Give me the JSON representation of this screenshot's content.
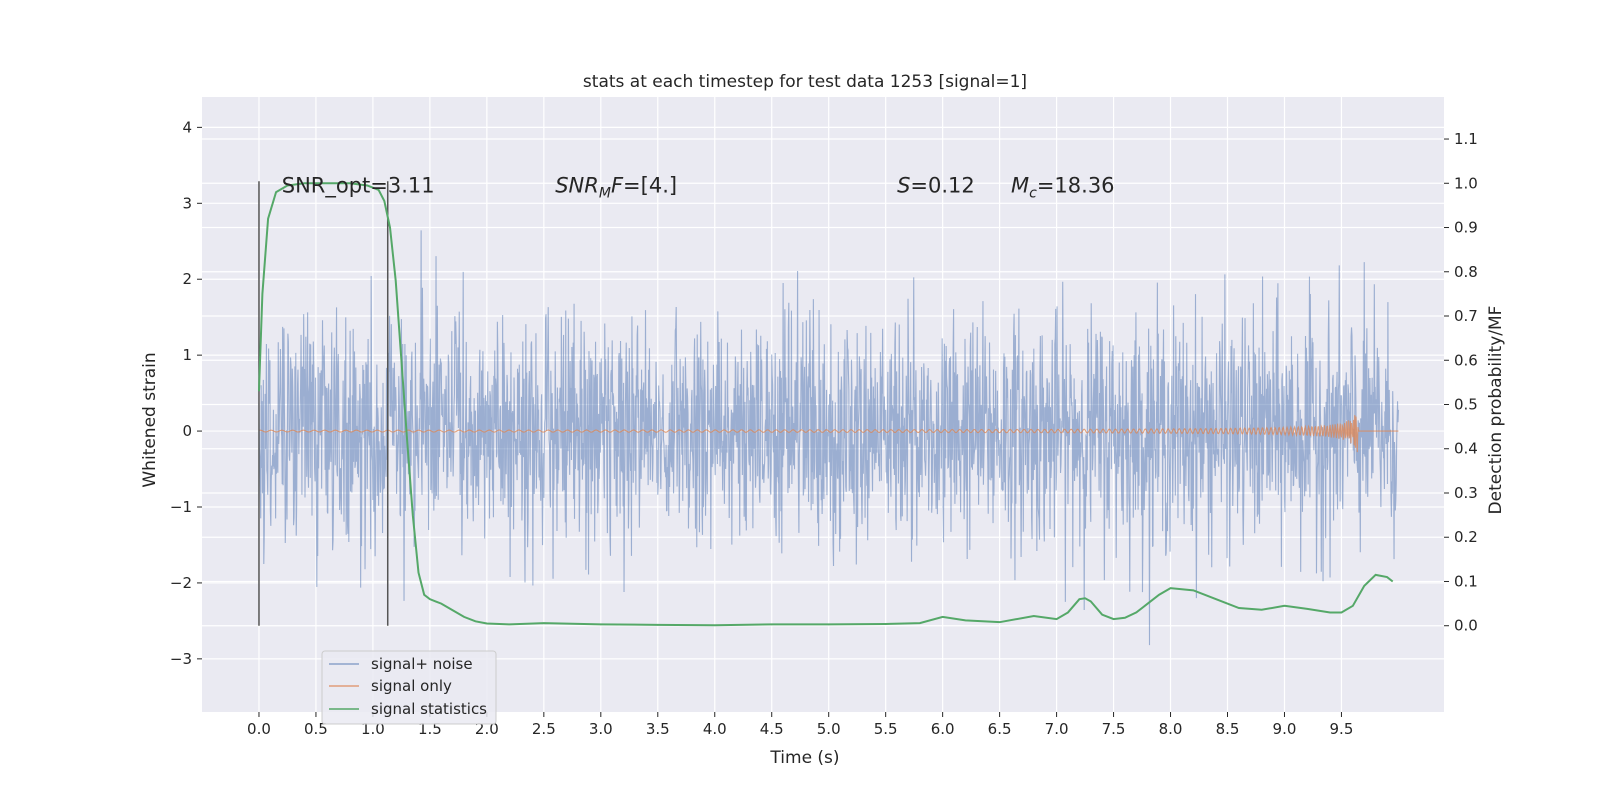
{
  "chart_data": {
    "type": "line",
    "title": "stats at each timestep for test data 1253 [signal=1]",
    "xlabel": "Time (s)",
    "ylabel": "Whitened strain",
    "y2label": "Detection probability/MF",
    "xlim": [
      -0.5,
      10.4
    ],
    "ylim": [
      -3.7,
      4.4
    ],
    "y2lim": [
      -0.195,
      1.195
    ],
    "x_ticks": [
      0.0,
      0.5,
      1.0,
      1.5,
      2.0,
      2.5,
      3.0,
      3.5,
      4.0,
      4.5,
      5.0,
      5.5,
      6.0,
      6.5,
      7.0,
      7.5,
      8.0,
      8.5,
      9.0,
      9.5
    ],
    "x_tick_labels": [
      "0.0",
      "0.5",
      "1.0",
      "1.5",
      "2.0",
      "2.5",
      "3.0",
      "3.5",
      "4.0",
      "4.5",
      "5.0",
      "5.5",
      "6.0",
      "6.5",
      "7.0",
      "7.5",
      "8.0",
      "8.5",
      "9.0",
      "9.5"
    ],
    "y_ticks": [
      -3,
      -2,
      -1,
      0,
      1,
      2,
      3,
      4
    ],
    "y_tick_labels": [
      "−3",
      "−2",
      "−1",
      "0",
      "1",
      "2",
      "3",
      "4"
    ],
    "y2_ticks": [
      0.0,
      0.1,
      0.2,
      0.3,
      0.4,
      0.5,
      0.6,
      0.7,
      0.8,
      0.9,
      1.0,
      1.1
    ],
    "y2_tick_labels": [
      "0.0",
      "0.1",
      "0.2",
      "0.3",
      "0.4",
      "0.5",
      "0.6",
      "0.7",
      "0.8",
      "0.9",
      "1.0",
      "1.1"
    ],
    "grid": true,
    "legend_position": "lower-left",
    "series": [
      {
        "name": "signal+ noise",
        "color": "#4c72b0",
        "axis": "left",
        "x_range": [
          0.0,
          10.0
        ]
      },
      {
        "name": "signal only",
        "color": "#dd8452",
        "axis": "left",
        "merger_time": 9.65,
        "peak_amplitude": 0.5
      },
      {
        "name": "signal statistics",
        "color": "#55a868",
        "axis": "right",
        "x": [
          0.0,
          0.03,
          0.08,
          0.15,
          0.25,
          0.4,
          0.6,
          0.8,
          0.95,
          1.05,
          1.1,
          1.15,
          1.2,
          1.25,
          1.3,
          1.35,
          1.4,
          1.45,
          1.5,
          1.55,
          1.6,
          1.7,
          1.8,
          1.9,
          2.0,
          2.2,
          2.5,
          3.0,
          3.5,
          4.0,
          4.5,
          5.0,
          5.5,
          5.8,
          6.0,
          6.2,
          6.5,
          6.8,
          7.0,
          7.1,
          7.2,
          7.25,
          7.3,
          7.4,
          7.5,
          7.6,
          7.7,
          7.8,
          7.9,
          8.0,
          8.2,
          8.4,
          8.6,
          8.8,
          9.0,
          9.2,
          9.4,
          9.5,
          9.6,
          9.7,
          9.8,
          9.9,
          9.95
        ],
        "y": [
          0.53,
          0.75,
          0.92,
          0.98,
          0.995,
          1.0,
          1.0,
          1.0,
          0.995,
          0.985,
          0.96,
          0.9,
          0.78,
          0.6,
          0.42,
          0.25,
          0.12,
          0.07,
          0.06,
          0.055,
          0.05,
          0.035,
          0.02,
          0.01,
          0.005,
          0.003,
          0.006,
          0.003,
          0.002,
          0.001,
          0.003,
          0.003,
          0.004,
          0.006,
          0.02,
          0.012,
          0.008,
          0.022,
          0.015,
          0.03,
          0.06,
          0.062,
          0.055,
          0.025,
          0.015,
          0.018,
          0.03,
          0.05,
          0.07,
          0.085,
          0.08,
          0.06,
          0.04,
          0.036,
          0.045,
          0.038,
          0.03,
          0.03,
          0.045,
          0.09,
          0.115,
          0.11,
          0.1
        ]
      }
    ],
    "vlines": [
      0.0,
      1.13
    ],
    "annotations": [
      {
        "text": "SNR_opt=3.11",
        "x": 0.2,
        "y": 3.25
      },
      {
        "text": "SNR_MF=[4.]",
        "x": 2.6,
        "y": 3.25
      },
      {
        "text": "S=0.12",
        "x": 5.6,
        "y": 3.25
      },
      {
        "text": "M_c=18.36",
        "x": 6.6,
        "y": 3.25
      }
    ]
  }
}
